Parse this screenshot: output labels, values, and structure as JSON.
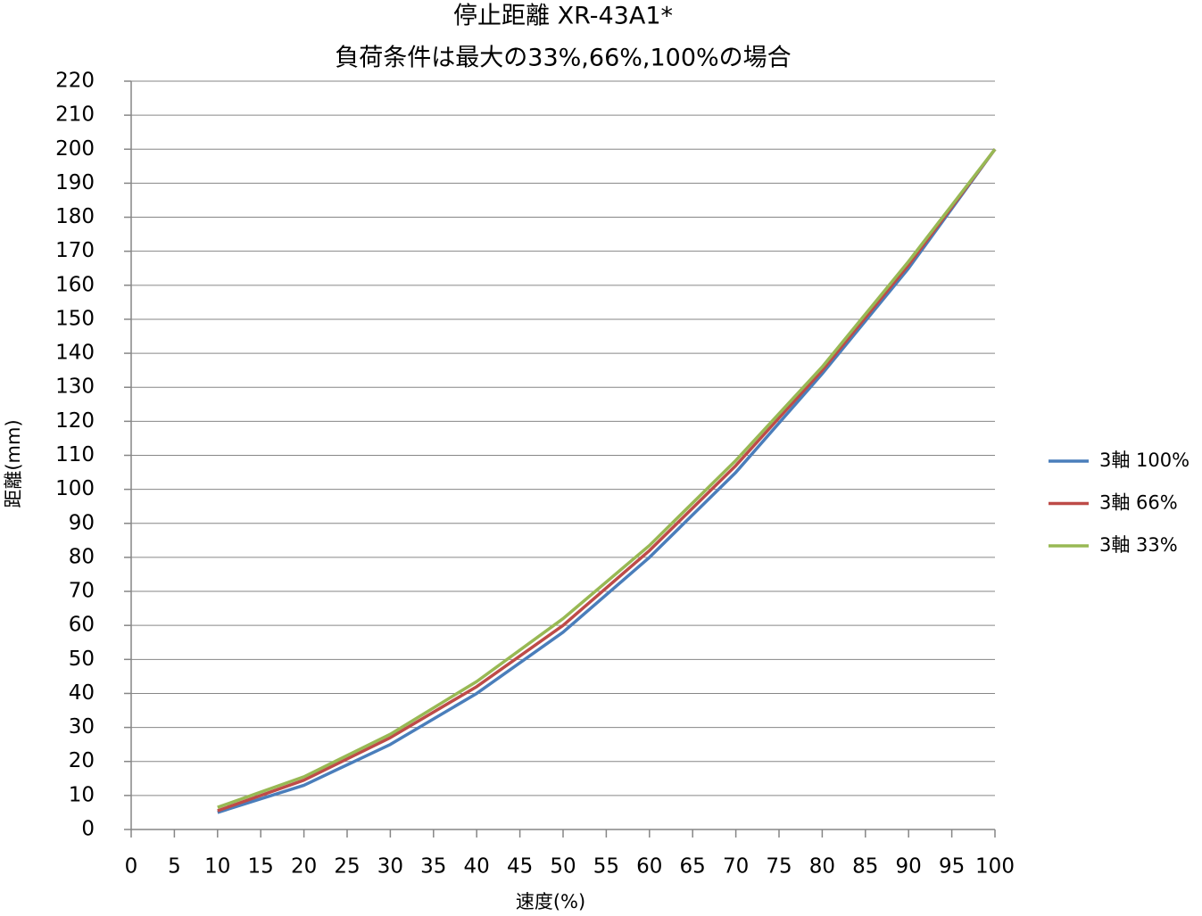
{
  "chart_data": {
    "type": "line",
    "title": "停止距離 XR-43A1*",
    "subtitle": "負荷条件は最大の33%,66%,100%の場合",
    "x_label": "速度(%)",
    "y_label": "距離(mm)",
    "x": [
      10,
      20,
      30,
      40,
      50,
      60,
      70,
      80,
      90,
      100
    ],
    "series": [
      {
        "name": "3軸 100%",
        "color": "#4a7ebb",
        "values": [
          5,
          13,
          25,
          40,
          58,
          80,
          105,
          134,
          165,
          200
        ]
      },
      {
        "name": "3軸 66%",
        "color": "#be4b48",
        "values": [
          5.5,
          14.5,
          27,
          42,
          60,
          82,
          107,
          135,
          166,
          200
        ]
      },
      {
        "name": "3軸 33%",
        "color": "#98b954",
        "values": [
          6.5,
          15.5,
          28,
          43.5,
          62,
          83.5,
          108.5,
          136,
          167,
          200
        ]
      }
    ],
    "xlim": [
      0,
      100
    ],
    "xticks": [
      0,
      5,
      10,
      15,
      20,
      25,
      30,
      35,
      40,
      45,
      50,
      55,
      60,
      65,
      70,
      75,
      80,
      85,
      90,
      95,
      100
    ],
    "ylim": [
      0,
      220
    ],
    "yticks": [
      0,
      10,
      20,
      30,
      40,
      50,
      60,
      70,
      80,
      90,
      100,
      110,
      120,
      130,
      140,
      150,
      160,
      170,
      180,
      190,
      200,
      210,
      220
    ],
    "grid": true,
    "legend": "right"
  }
}
